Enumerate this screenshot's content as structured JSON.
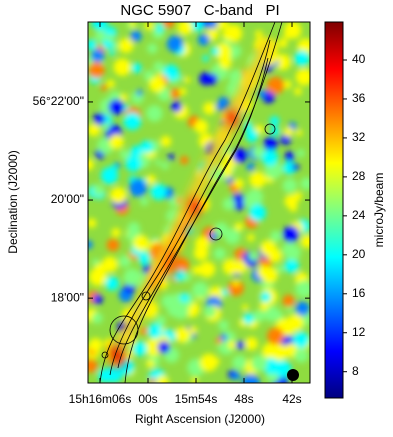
{
  "chart_data": {
    "type": "image",
    "title": "NGC 5907   C-band   PI",
    "x_label": "Right Ascension (J2000)",
    "y_label": "Declination (J2000)",
    "colorbar_label": "microJy/beam",
    "xlim": [
      967.5,
      939.75
    ],
    "xticks": [
      {
        "value": 966,
        "label": "15h16m06s"
      },
      {
        "value": 960,
        "label": "00s"
      },
      {
        "value": 954,
        "label": "15m54s"
      },
      {
        "value": 948,
        "label": "48s"
      },
      {
        "value": 942,
        "label": "42s"
      }
    ],
    "ylim": [
      16.27,
      23.63
    ],
    "yticks": [
      {
        "value": 22,
        "label": "56°22'00\""
      },
      {
        "value": 20,
        "label": "20'00\""
      },
      {
        "value": 18,
        "label": "18'00\""
      }
    ],
    "clim": [
      5.3,
      43.9
    ],
    "cticks": [
      8,
      12,
      16,
      20,
      24,
      28,
      32,
      36,
      40
    ],
    "colormap": [
      "#00007f",
      "#0000ff",
      "#0080ff",
      "#00ffff",
      "#80ff80",
      "#ffff00",
      "#ff8000",
      "#ff0000",
      "#7f0000"
    ]
  }
}
